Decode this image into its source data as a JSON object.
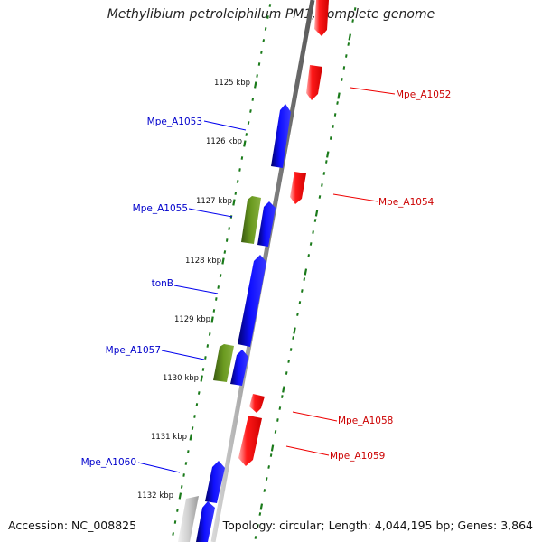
{
  "title": "Methylibium petroleiphilum PM1, complete genome",
  "footer": {
    "accession": "Accession: NC_008825",
    "topology": "Topology: circular; Length: 4,044,195 bp; Genes: 3,864"
  },
  "ticks": [
    "1125 kbp",
    "1126 kbp",
    "1127 kbp",
    "1128 kbp",
    "1129 kbp",
    "1130 kbp",
    "1131 kbp",
    "1132 kbp"
  ],
  "genes": [
    {
      "id": "g-top-red",
      "label": "",
      "strand": "reverse",
      "type": "CDS"
    },
    {
      "id": "g-a1052",
      "label": "Mpe_A1052",
      "strand": "reverse",
      "type": "CDS"
    },
    {
      "id": "g-a1053",
      "label": "Mpe_A1053",
      "strand": "forward",
      "type": "CDS"
    },
    {
      "id": "g-a1054",
      "label": "Mpe_A1054",
      "strand": "reverse",
      "type": "CDS"
    },
    {
      "id": "g-a1055",
      "label": "Mpe_A1055",
      "strand": "forward",
      "type": "other"
    },
    {
      "id": "g-a1055b",
      "label": "",
      "strand": "forward",
      "type": "CDS"
    },
    {
      "id": "g-tonb",
      "label": "tonB",
      "strand": "forward",
      "type": "CDS"
    },
    {
      "id": "g-a1057",
      "label": "Mpe_A1057",
      "strand": "forward",
      "type": "other"
    },
    {
      "id": "g-a1057b",
      "label": "",
      "strand": "forward",
      "type": "CDS"
    },
    {
      "id": "g-a1058",
      "label": "Mpe_A1058",
      "strand": "reverse",
      "type": "CDS"
    },
    {
      "id": "g-a1059",
      "label": "Mpe_A1059",
      "strand": "reverse",
      "type": "CDS"
    },
    {
      "id": "g-a1060",
      "label": "Mpe_A1060",
      "strand": "forward",
      "type": "CDS"
    },
    {
      "id": "g-a1060b",
      "label": "",
      "strand": "forward",
      "type": "CDS"
    },
    {
      "id": "g-bottom-grey",
      "label": "",
      "strand": "forward",
      "type": "other"
    }
  ],
  "colors": {
    "forward": "#0000ee",
    "reverse": "#ee0000",
    "other": "#5a8a1a",
    "backbone": "#8a8a8a",
    "ticks": "#1a7a1a",
    "forward_label": "#0000cc",
    "reverse_label": "#cc0000"
  }
}
